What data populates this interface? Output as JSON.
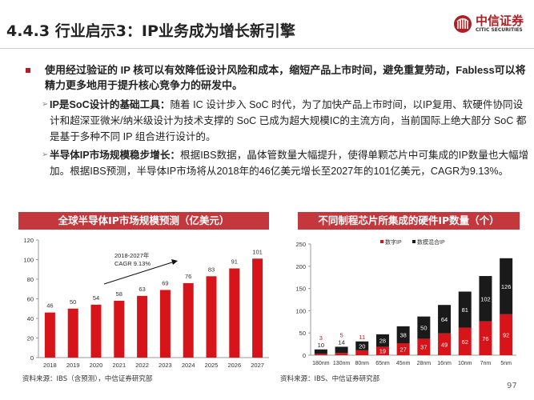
{
  "header": {
    "title": "4.4.3 行业启示3：IP业务成为增长新引擎",
    "logo_cn": "中信证券",
    "logo_en": "CITIC SECURITIES"
  },
  "bullet": {
    "text": "使用经过验证的 IP 核可以有效降低设计风险和成本，缩短产品上市时间，避免重复劳动，Fabless可以将精力更多地用于提升核心竞争力的研发中。"
  },
  "subs": [
    {
      "head": "IP是SoC设计的基础工具：",
      "body": "随着 IC 设计步入 SoC 时代，为了加快产品上市时间，以IP复用、软硬件协同设计和超深亚微米/纳米级设计为技术支撑的 SoC 已成为超大规模IC的主流方向，当前国际上绝大部分 SoC 都是基于多种不同 IP 组合进行设计的。"
    },
    {
      "head": "半导体IP市场规模稳步增长：",
      "body": "根据IBS数据，晶体管数量大幅提升，使得单颗芯片中可集成的IP数量也大幅增加。根据IBS预测，半导体IP市场将从2018年的46亿美元增长至2027年的101亿美元，CAGR为9.13%。"
    }
  ],
  "chart_data": [
    {
      "type": "bar",
      "title": "全球半导体IP市场规模预测（亿美元）",
      "categories": [
        "2018",
        "2019",
        "2020",
        "2021",
        "2022",
        "2023",
        "2024",
        "2025",
        "2026",
        "2027"
      ],
      "values": [
        46,
        50,
        54,
        58,
        63,
        69,
        76,
        83,
        91,
        101
      ],
      "ylim": [
        0,
        120
      ],
      "yticks": [
        0,
        20,
        40,
        60,
        80,
        100,
        120
      ],
      "annotation": [
        "2018-2027年",
        "CAGR 9.13%"
      ],
      "color": "#d7141a",
      "source": "资料来源：IBS（含预测），中信证券研究部"
    },
    {
      "type": "bar",
      "stacked": true,
      "title": "不同制程芯片所集成的硬件IP数量（个）",
      "categories": [
        "180nm",
        "130nm",
        "80nm",
        "65nm",
        "45nm",
        "28nm",
        "16nm",
        "10nm",
        "7nm",
        "5nm"
      ],
      "series": [
        {
          "name": "数字IP",
          "values": [
            3,
            5,
            11,
            19,
            27,
            37,
            49,
            62,
            76,
            92
          ],
          "color": "#d7141a"
        },
        {
          "name": "数模混合IP",
          "values": [
            10,
            14,
            20,
            28,
            38,
            50,
            64,
            81,
            102,
            126
          ],
          "color": "#1a1a1a"
        }
      ],
      "ylim": [
        0,
        250
      ],
      "yticks": [
        0,
        50,
        100,
        150,
        200,
        250
      ],
      "legend": "top",
      "source": "资料来源：IBS、中信证券研究部"
    }
  ],
  "page_number": "97"
}
